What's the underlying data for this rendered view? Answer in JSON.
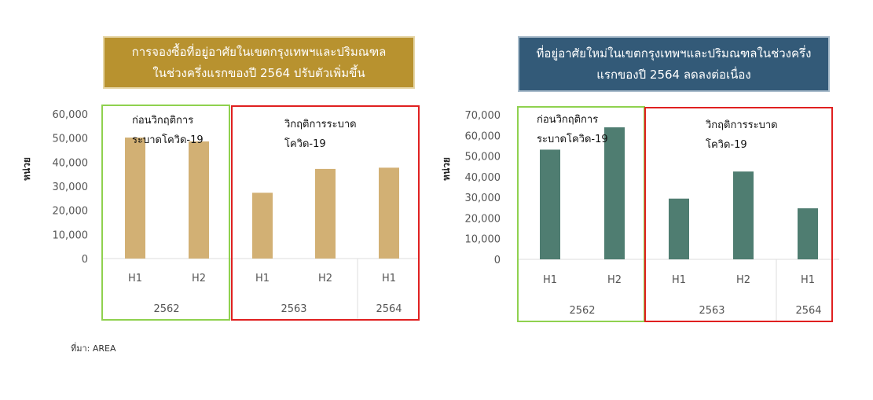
{
  "titles": [
    {
      "line1": "การจองซื้อที่อยู่อาศัยในเขตกรุงเทพฯและปริมณฑล",
      "line2": "ในช่วงครึ่งแรกของปี 2564 ปรับตัวเพิ่มขึ้น"
    },
    {
      "line1": "ที่อยู่อาศัยใหม่ในเขตกรุงเทพฯและปริมณฑลในช่วงครึ่ง",
      "line2": "แรกของปี 2564 ลดลงต่อเนื่อง"
    }
  ],
  "source": "ที่มา: AREA",
  "colors": {
    "left_bar": "#d2b074",
    "right_bar": "#4f7d71",
    "pre_box": "#8fd14f",
    "crisis_box": "#e02020"
  },
  "chart_data": [
    {
      "type": "bar",
      "ylabel": "หน่วย",
      "ylim": [
        0,
        60000
      ],
      "yticks": [
        "0",
        "10,000",
        "20,000",
        "30,000",
        "40,000",
        "50,000",
        "60,000"
      ],
      "categories": [
        "H1",
        "H2",
        "H1",
        "H2",
        "H1"
      ],
      "years": [
        "2562",
        "2563",
        "2564"
      ],
      "values": [
        50200,
        48600,
        27300,
        37200,
        37700
      ],
      "annotations": {
        "pre": [
          "ก่อนวิกฤติการ",
          "ระบาดโควิด-19"
        ],
        "crisis": [
          "วิกฤติการระบาด",
          "โควิด-19"
        ]
      }
    },
    {
      "type": "bar",
      "ylabel": "หน่วย",
      "ylim": [
        0,
        70000
      ],
      "yticks": [
        "0",
        "10,000",
        "20,000",
        "30,000",
        "40,000",
        "50,000",
        "60,000",
        "70,000"
      ],
      "categories": [
        "H1",
        "H2",
        "H1",
        "H2",
        "H1"
      ],
      "years": [
        "2562",
        "2563",
        "2564"
      ],
      "values": [
        53100,
        63900,
        29400,
        42500,
        24700
      ],
      "annotations": {
        "pre": [
          "ก่อนวิกฤติการ",
          "ระบาดโควิด-19"
        ],
        "crisis": [
          "วิกฤติการระบาด",
          "โควิด-19"
        ]
      }
    }
  ]
}
